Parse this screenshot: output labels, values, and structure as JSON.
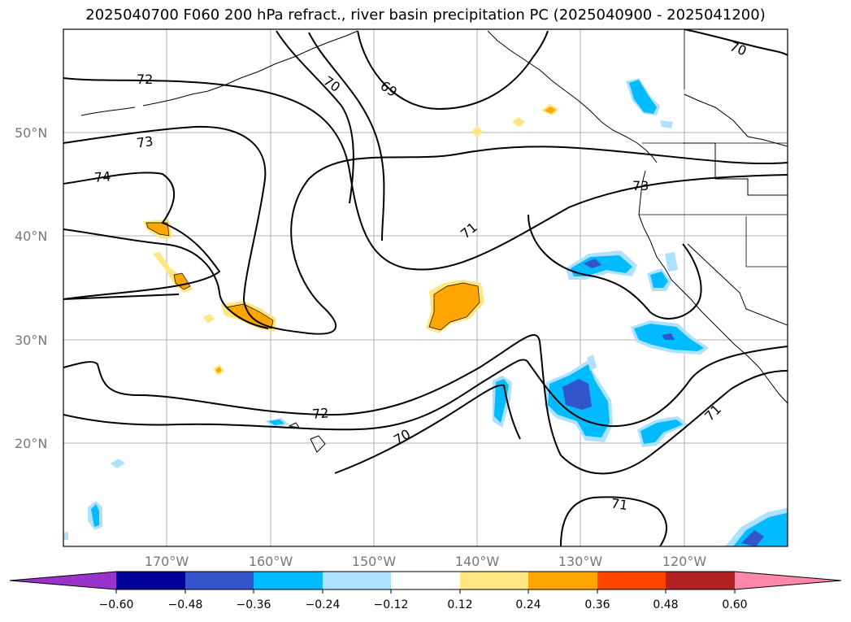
{
  "title": "2025040700 F060 200 hPa refract., river basin precipitation PC (2025040900 - 2025041200)",
  "map": {
    "lat_labels": [
      "50°N",
      "40°N",
      "30°N",
      "20°N"
    ],
    "lon_labels": [
      "170°W",
      "160°W",
      "150°W",
      "140°W",
      "130°W",
      "120°W"
    ],
    "contour_labels": [
      "72",
      "73",
      "74",
      "70",
      "69",
      "70",
      "73",
      "71",
      "72",
      "70",
      "71",
      "71"
    ]
  },
  "colorbar": {
    "ticks": [
      "−0.60",
      "−0.48",
      "−0.36",
      "−0.24",
      "−0.12",
      "0.12",
      "0.24",
      "0.36",
      "0.48",
      "0.60"
    ],
    "colors": [
      "#9933cc",
      "#000099",
      "#3355cc",
      "#00bbff",
      "#aee1ff",
      "#ffffff",
      "#ffe680",
      "#ffa500",
      "#ff4400",
      "#b22222",
      "#ff88aa"
    ]
  }
}
